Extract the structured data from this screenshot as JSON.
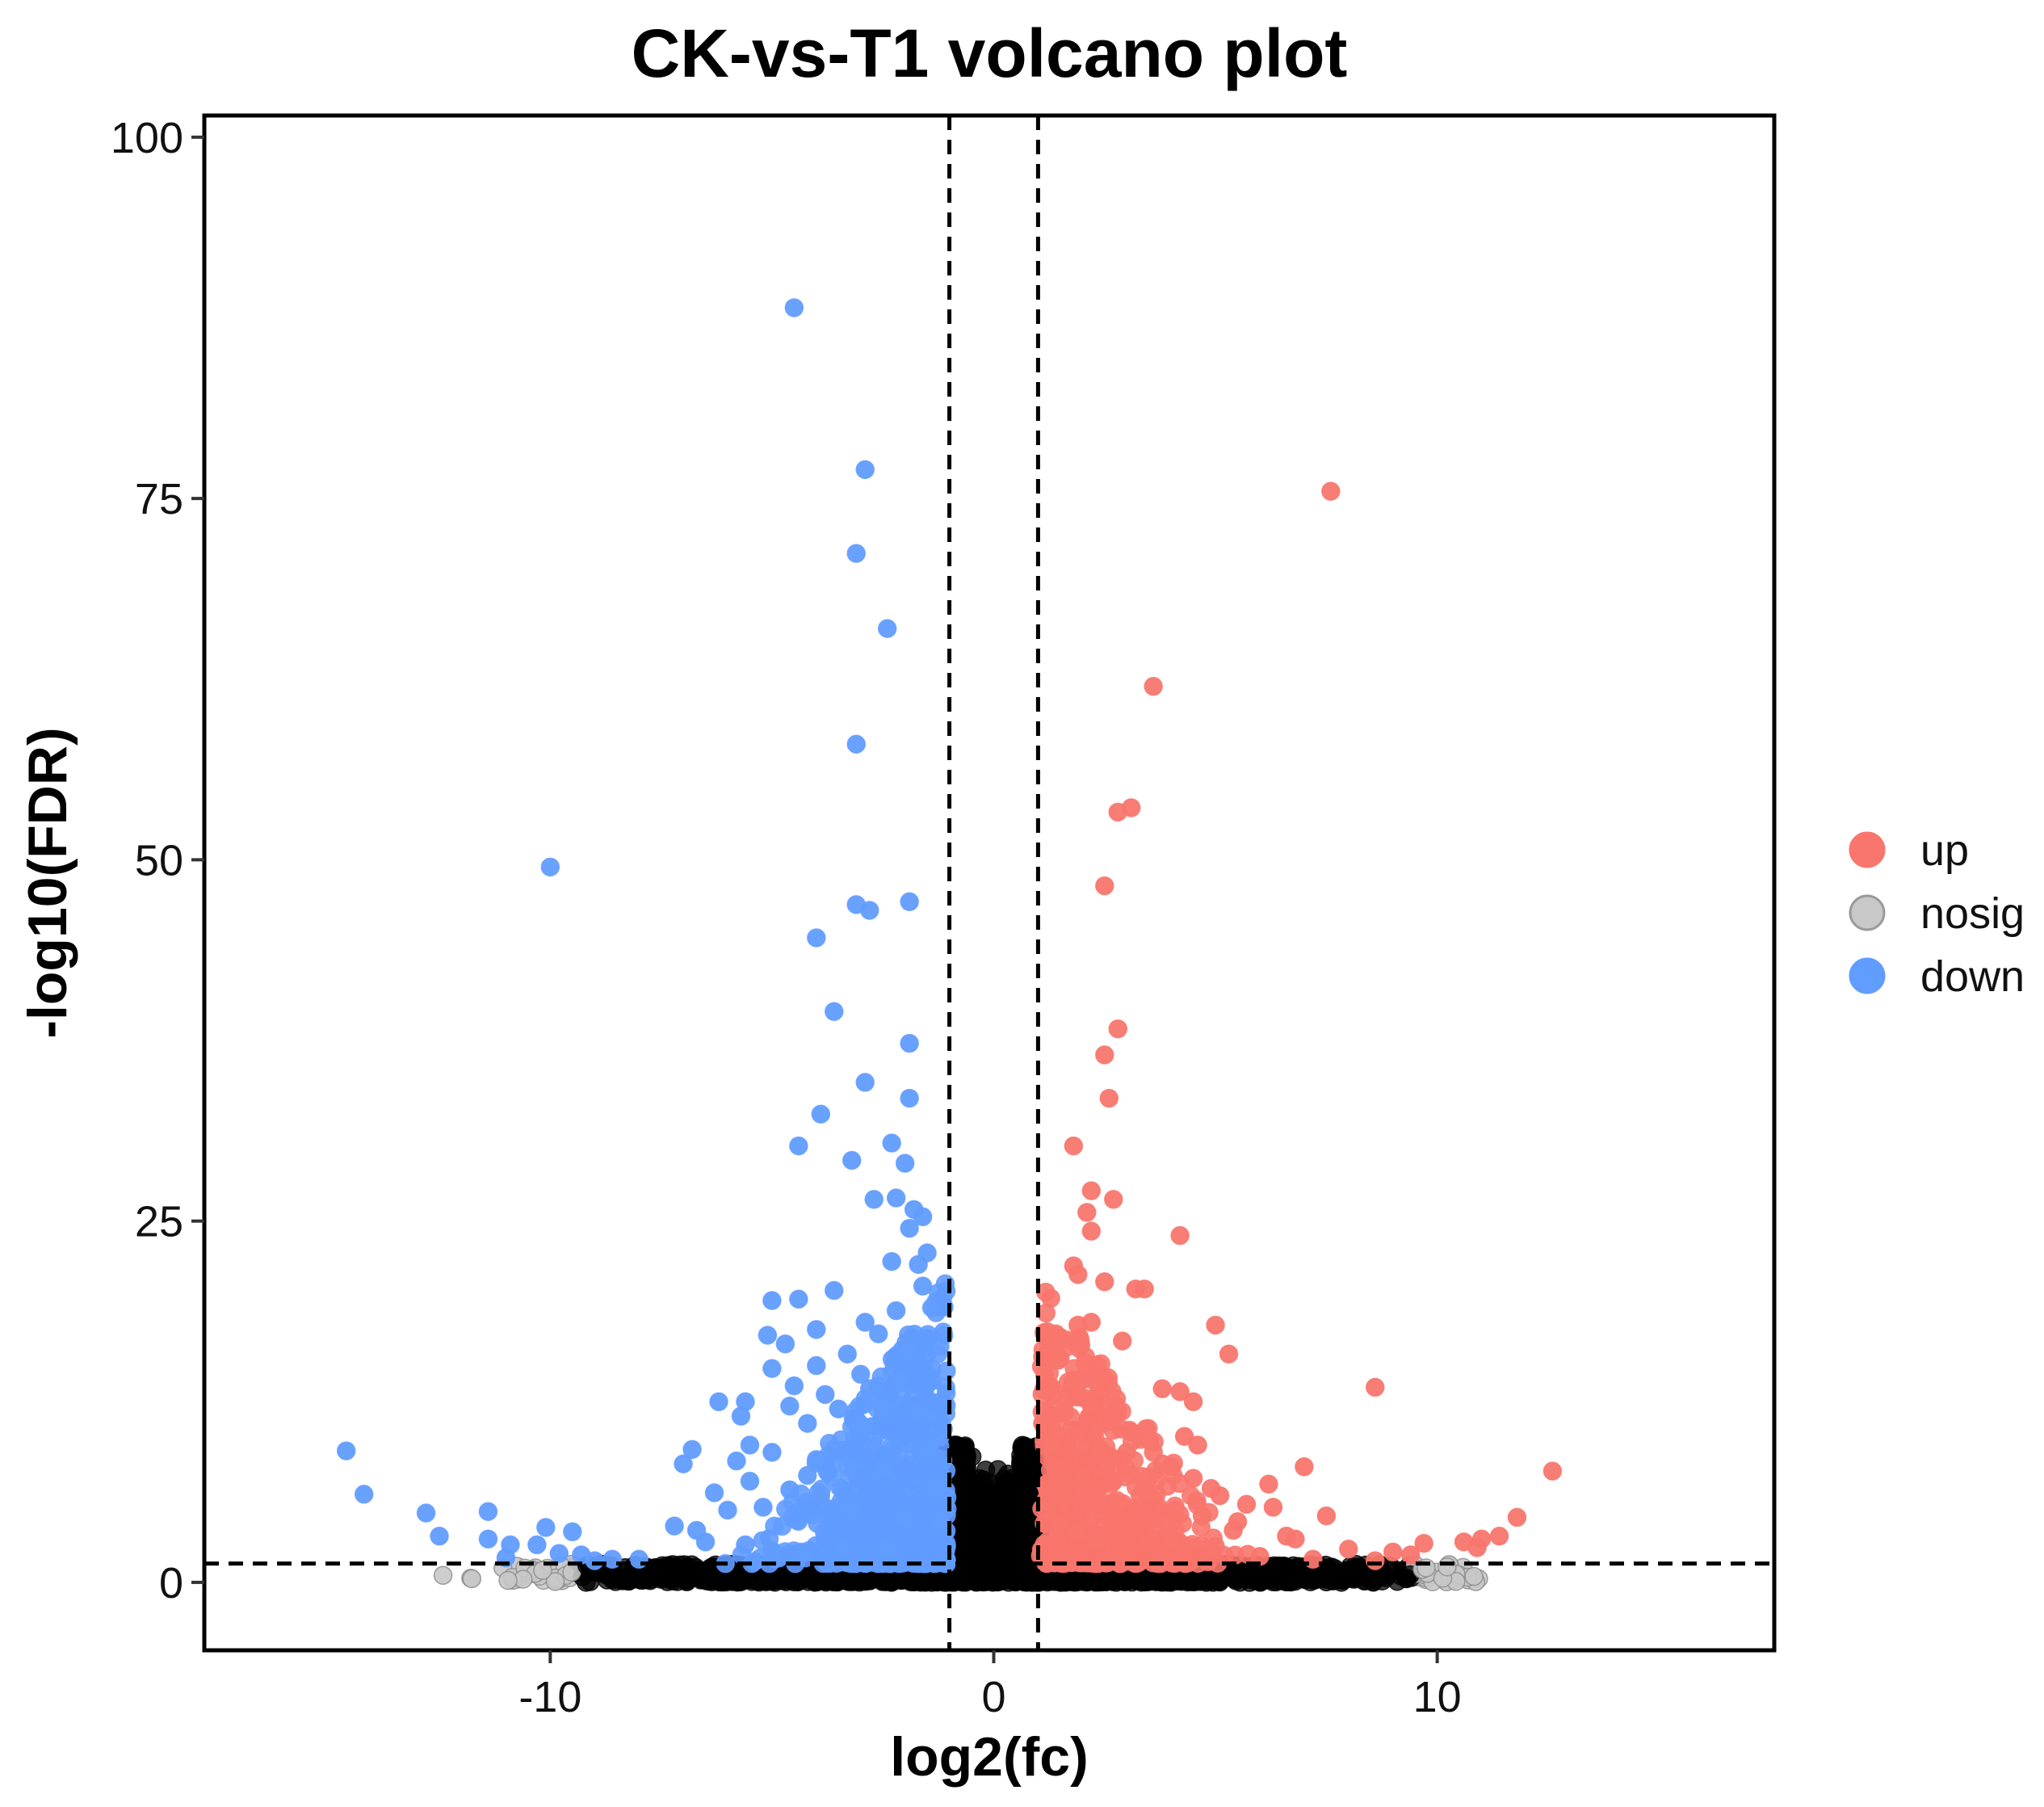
{
  "chart_data": {
    "type": "scatter",
    "title": "CK-vs-T1 volcano plot",
    "xlabel": "log2(fc)",
    "ylabel": "-log10(FDR)",
    "xlim": [
      -17.8,
      17.6
    ],
    "ylim": [
      -4.7,
      101.5
    ],
    "x_ticks": [
      -10,
      0,
      10
    ],
    "x_tick_labels": [
      "-10",
      "0",
      "10"
    ],
    "y_ticks": [
      0,
      25,
      50,
      75,
      100
    ],
    "y_tick_labels": [
      "0",
      "25",
      "50",
      "75",
      "100"
    ],
    "grid": false,
    "legend_position": "right",
    "thresholds": {
      "log2fc": [
        -1,
        1
      ],
      "neg_log10_fdr": 1.3
    },
    "legend": [
      {
        "key": "up",
        "label": "up",
        "color": "#F8766D"
      },
      {
        "key": "nosig",
        "label": "nosig",
        "color": "#C8C8C8"
      },
      {
        "key": "down",
        "label": "down",
        "color": "#619CFF"
      }
    ],
    "series": [
      {
        "name": "up",
        "color": "#F8766D",
        "points": [
          [
            7.6,
            75.5
          ],
          [
            3.6,
            62.0
          ],
          [
            3.1,
            53.6
          ],
          [
            2.8,
            53.3
          ],
          [
            2.5,
            48.2
          ],
          [
            2.8,
            38.3
          ],
          [
            2.5,
            36.5
          ],
          [
            2.6,
            33.5
          ],
          [
            1.8,
            30.2
          ],
          [
            2.2,
            27.1
          ],
          [
            2.7,
            26.5
          ],
          [
            2.1,
            25.6
          ],
          [
            2.2,
            24.3
          ],
          [
            4.2,
            24.0
          ],
          [
            1.8,
            21.9
          ],
          [
            1.9,
            21.3
          ],
          [
            2.5,
            20.8
          ],
          [
            3.2,
            20.3
          ],
          [
            3.4,
            20.3
          ],
          [
            2.2,
            18.0
          ],
          [
            1.9,
            17.8
          ],
          [
            5.0,
            17.8
          ],
          [
            1.4,
            17.2
          ],
          [
            1.2,
            16.8
          ],
          [
            2.9,
            16.7
          ],
          [
            5.3,
            15.8
          ],
          [
            1.5,
            15.5
          ],
          [
            1.8,
            14.0
          ],
          [
            1.3,
            13.5
          ],
          [
            3.8,
            13.4
          ],
          [
            4.2,
            13.2
          ],
          [
            8.6,
            13.5
          ],
          [
            4.5,
            12.5
          ],
          [
            2.2,
            12.2
          ],
          [
            1.6,
            11.8
          ],
          [
            3.1,
            10.4
          ],
          [
            3.3,
            10.1
          ],
          [
            4.3,
            10.1
          ],
          [
            4.6,
            9.5
          ],
          [
            2.4,
            9.2
          ],
          [
            3.0,
            9.0
          ],
          [
            3.6,
            9.0
          ],
          [
            3.8,
            8.2
          ],
          [
            4.0,
            8.0
          ],
          [
            7.0,
            8.0
          ],
          [
            12.6,
            7.7
          ],
          [
            2.0,
            7.5
          ],
          [
            4.5,
            7.2
          ],
          [
            6.2,
            6.8
          ],
          [
            4.9,
            6.5
          ],
          [
            5.1,
            6.0
          ],
          [
            3.3,
            6.0
          ],
          [
            2.8,
            5.5
          ],
          [
            5.7,
            5.4
          ],
          [
            6.3,
            5.2
          ],
          [
            4.1,
            5.0
          ],
          [
            4.7,
            4.6
          ],
          [
            7.5,
            4.6
          ],
          [
            11.8,
            4.5
          ],
          [
            5.5,
            4.2
          ],
          [
            3.6,
            4.0
          ],
          [
            5.4,
            3.6
          ],
          [
            6.6,
            3.2
          ],
          [
            6.8,
            3.0
          ],
          [
            11.4,
            3.2
          ],
          [
            11.0,
            3.0
          ],
          [
            10.6,
            2.8
          ],
          [
            9.7,
            2.7
          ],
          [
            4.0,
            3.0
          ],
          [
            5.0,
            2.5
          ],
          [
            8.0,
            2.3
          ],
          [
            9.0,
            2.1
          ],
          [
            10.9,
            2.4
          ],
          [
            9.4,
            1.9
          ],
          [
            6.0,
            1.8
          ],
          [
            8.6,
            1.5
          ],
          [
            7.2,
            1.6
          ],
          [
            1.4,
            8.0
          ],
          [
            1.1,
            11.0
          ],
          [
            1.3,
            9.5
          ],
          [
            1.6,
            6.5
          ],
          [
            1.2,
            5.0
          ],
          [
            1.5,
            4.2
          ],
          [
            1.9,
            3.5
          ],
          [
            2.3,
            2.8
          ]
        ]
      },
      {
        "name": "down",
        "color": "#619CFF",
        "points": [
          [
            -4.5,
            88.2
          ],
          [
            -2.9,
            77.0
          ],
          [
            -3.1,
            71.2
          ],
          [
            -2.4,
            66.0
          ],
          [
            -3.1,
            58.0
          ],
          [
            -10.0,
            49.5
          ],
          [
            -3.1,
            46.9
          ],
          [
            -2.8,
            46.5
          ],
          [
            -1.9,
            47.1
          ],
          [
            -4.0,
            44.6
          ],
          [
            -3.6,
            39.5
          ],
          [
            -1.9,
            37.3
          ],
          [
            -2.9,
            34.6
          ],
          [
            -1.9,
            33.5
          ],
          [
            -3.9,
            32.4
          ],
          [
            -4.4,
            30.2
          ],
          [
            -3.2,
            29.2
          ],
          [
            -2.3,
            30.4
          ],
          [
            -2.0,
            29.0
          ],
          [
            -2.7,
            26.5
          ],
          [
            -2.2,
            26.6
          ],
          [
            -1.8,
            25.8
          ],
          [
            -1.6,
            25.3
          ],
          [
            -1.9,
            24.5
          ],
          [
            -1.5,
            22.8
          ],
          [
            -2.3,
            22.2
          ],
          [
            -1.7,
            22.0
          ],
          [
            -5.0,
            19.5
          ],
          [
            -4.4,
            19.6
          ],
          [
            -3.6,
            20.2
          ],
          [
            -2.9,
            18.0
          ],
          [
            -2.2,
            18.8
          ],
          [
            -1.6,
            20.5
          ],
          [
            -1.4,
            19.0
          ],
          [
            -4.0,
            17.5
          ],
          [
            -5.1,
            17.1
          ],
          [
            -2.6,
            17.2
          ],
          [
            -4.7,
            16.5
          ],
          [
            -1.9,
            16.0
          ],
          [
            -3.3,
            15.8
          ],
          [
            -4.0,
            15.0
          ],
          [
            -5.0,
            14.8
          ],
          [
            -3.0,
            14.4
          ],
          [
            -2.1,
            14.0
          ],
          [
            -4.5,
            13.6
          ],
          [
            -3.8,
            13.0
          ],
          [
            -2.8,
            13.4
          ],
          [
            -5.6,
            12.5
          ],
          [
            -6.2,
            12.5
          ],
          [
            -4.6,
            12.2
          ],
          [
            -3.5,
            12.0
          ],
          [
            -2.5,
            12.0
          ],
          [
            -5.7,
            11.5
          ],
          [
            -4.2,
            11.0
          ],
          [
            -3.0,
            10.9
          ],
          [
            -1.7,
            11.8
          ],
          [
            -6.8,
            9.2
          ],
          [
            -5.5,
            9.5
          ],
          [
            -5.0,
            9.0
          ],
          [
            -4.0,
            8.5
          ],
          [
            -7.0,
            8.2
          ],
          [
            -5.8,
            8.4
          ],
          [
            -3.3,
            8.0
          ],
          [
            -4.2,
            7.4
          ],
          [
            -2.5,
            7.8
          ],
          [
            -5.5,
            7.0
          ],
          [
            -6.3,
            6.2
          ],
          [
            -4.6,
            6.4
          ],
          [
            -3.9,
            6.0
          ],
          [
            -5.2,
            5.2
          ],
          [
            -6.0,
            5.0
          ],
          [
            -3.2,
            5.0
          ],
          [
            -14.6,
            9.1
          ],
          [
            -14.2,
            6.1
          ],
          [
            -12.8,
            4.8
          ],
          [
            -12.5,
            3.2
          ],
          [
            -11.4,
            4.9
          ],
          [
            -11.4,
            3.0
          ],
          [
            -10.9,
            2.6
          ],
          [
            -11.0,
            1.7
          ],
          [
            -10.1,
            3.8
          ],
          [
            -10.3,
            2.6
          ],
          [
            -9.5,
            3.5
          ],
          [
            -9.8,
            2.0
          ],
          [
            -9.3,
            1.9
          ],
          [
            -9.0,
            1.5
          ],
          [
            -8.6,
            1.6
          ],
          [
            -8.0,
            1.6
          ],
          [
            -7.2,
            3.9
          ],
          [
            -6.7,
            3.6
          ],
          [
            -6.5,
            2.8
          ],
          [
            -5.6,
            2.6
          ],
          [
            -5.0,
            2.2
          ],
          [
            -4.3,
            2.0
          ],
          [
            -3.4,
            2.4
          ],
          [
            -2.4,
            2.3
          ],
          [
            -1.5,
            9.0
          ],
          [
            -1.3,
            6.5
          ],
          [
            -1.2,
            4.2
          ],
          [
            -2.0,
            4.5
          ]
        ]
      }
    ],
    "dense_clouds": {
      "down_count": 650,
      "up_count": 520,
      "nosig_count": 5500
    }
  }
}
